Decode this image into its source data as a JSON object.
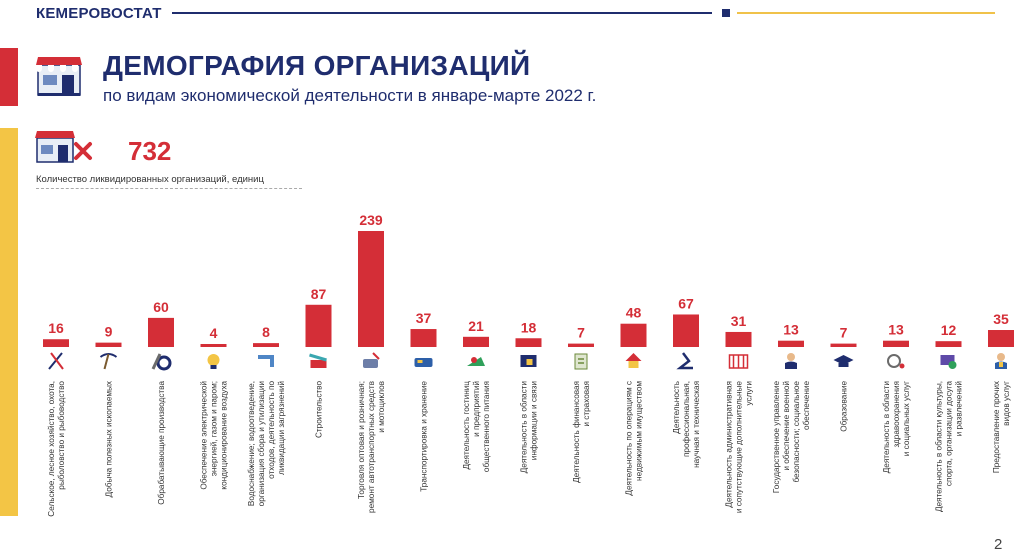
{
  "header": {
    "brand": "КЕМЕРОВОСТАТ"
  },
  "title": "ДЕМОГРАФИЯ ОРГАНИЗАЦИЙ",
  "subtitle": "по видам экономической деятельности в январе-марте 2022 г.",
  "summary": {
    "value": "732",
    "caption": "Количество ликвидированных организаций, единиц"
  },
  "page_number": "2",
  "colors": {
    "navy": "#1f2d6e",
    "red": "#d42e37",
    "yellow": "#f3c545"
  },
  "chart_data": {
    "type": "bar",
    "title": "Количество ликвидированных организаций, единиц",
    "categories": [
      "Сельское, лесное хозяйство, охота, рыболовство и рыбоводство",
      "Добыча полезных ископаемых",
      "Обрабатывающие производства",
      "Обеспечение электрической энергией, газом и паром; кондиционирование воздуха",
      "Водоснабжение; водоотведение, организация сбора и утилизации отходов, деятельность по ликвидации загрязнений",
      "Строительство",
      "Торговля оптовая и розничная; ремонт автотранспортных средств и мотоциклов",
      "Транспортировка и хранение",
      "Деятельность гостиниц и предприятий общественного питания",
      "Деятельность в области информации и связи",
      "Деятельность финансовая и страховая",
      "Деятельность по операциям с недвижимым имуществом",
      "Деятельность профессиональная, научная и техническая",
      "Деятельность административная и сопутствующие дополнительные услуги",
      "Государственное управление и обеспечение военной безопасности; социальное обеспечение",
      "Образование",
      "Деятельность в области здравоохранения и социальных услуг",
      "Деятельность в области культуры, спорта, организации досуга и развлечений",
      "Предоставление прочих видов услуг"
    ],
    "label_lines": [
      [
        "Сельское, лесное хозяйство, охота,",
        "рыболовство и рыбоводство"
      ],
      [
        "Добыча полезных ископаемых"
      ],
      [
        "Обрабатывающие производства"
      ],
      [
        "Обеспечение электрической",
        "энергией, газом и паром;",
        "кондиционирование воздуха"
      ],
      [
        "Водоснабжение; водоотведение,",
        "организация сбора и утилизации",
        "отходов, деятельность по",
        "ликвидации загрязнений"
      ],
      [
        "Строительство"
      ],
      [
        "Торговля оптовая и розничная;",
        "ремонт автотранспортных средств",
        "и мотоциклов"
      ],
      [
        "Транспортировка и хранение"
      ],
      [
        "Деятельность гостиниц",
        "и предприятий",
        "общественного питания"
      ],
      [
        "Деятельность в области",
        "информации и связи"
      ],
      [
        "Деятельность финансовая",
        "и страховая"
      ],
      [
        "Деятельность по операциям с",
        "недвижимым имуществом"
      ],
      [
        "Деятельность",
        "профессиональная,",
        "научная и техническая"
      ],
      [
        "Деятельность административная",
        "и сопутствующие дополнительные",
        "услуги"
      ],
      [
        "Государственное управление",
        "и обеспечение военной",
        "безопасности; социальное",
        "обеспечение"
      ],
      [
        "Образование"
      ],
      [
        "Деятельность в области",
        "здравоохранения",
        "и социальных услуг"
      ],
      [
        "Деятельность в области культуры,",
        "спорта, организации досуга",
        "и развлечений"
      ],
      [
        "Предоставление прочих",
        "видов услуг"
      ]
    ],
    "values": [
      16,
      9,
      60,
      4,
      8,
      87,
      239,
      37,
      21,
      18,
      7,
      48,
      67,
      31,
      13,
      7,
      13,
      12,
      35
    ],
    "icons": [
      "agriculture-icon",
      "mining-icon",
      "manufacturing-icon",
      "energy-icon",
      "water-icon",
      "construction-icon",
      "trade-icon",
      "transport-icon",
      "hospitality-icon",
      "communication-icon",
      "finance-icon",
      "real-estate-icon",
      "science-icon",
      "admin-icon",
      "government-icon",
      "education-icon",
      "healthcare-icon",
      "culture-icon",
      "other-services-icon"
    ],
    "ylim": [
      0,
      239
    ],
    "xlabel": "",
    "ylabel": ""
  }
}
